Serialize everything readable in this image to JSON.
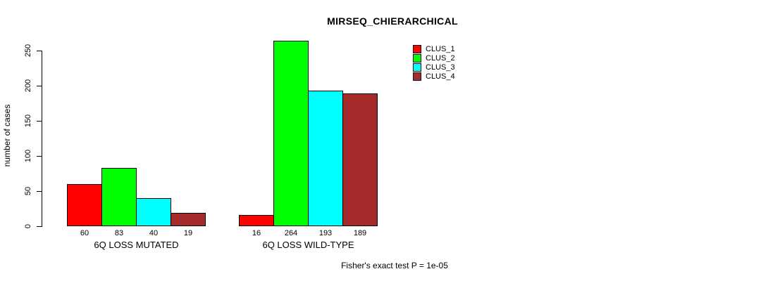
{
  "title": "MIRSEQ_CHIERARCHICAL",
  "footer": "Fisher's exact test P = 1e-05",
  "colors": {
    "background": "#ffffff",
    "axis": "#000000",
    "text": "#000000"
  },
  "chart_data": {
    "type": "bar",
    "title": "MIRSEQ_CHIERARCHICAL",
    "xlabel": "",
    "ylabel": "number of cases",
    "ylim": [
      0,
      250
    ],
    "yticks": [
      0,
      50,
      100,
      150,
      200,
      250
    ],
    "grid": false,
    "legend_position": "top-right",
    "categories": [
      "6Q LOSS MUTATED",
      "6Q LOSS WILD-TYPE"
    ],
    "series": [
      {
        "name": "CLUS_1",
        "color": "#ff0000",
        "values": [
          60,
          16
        ]
      },
      {
        "name": "CLUS_2",
        "color": "#00ff00",
        "values": [
          83,
          264
        ]
      },
      {
        "name": "CLUS_3",
        "color": "#00ffff",
        "values": [
          40,
          193
        ]
      },
      {
        "name": "CLUS_4",
        "color": "#a52a2a",
        "values": [
          19,
          189
        ]
      }
    ],
    "bar_value_labels": [
      [
        "60",
        "83",
        "40",
        "19"
      ],
      [
        "16",
        "264",
        "193",
        "189"
      ]
    ],
    "annotation": "Fisher's exact test P = 1e-05"
  }
}
